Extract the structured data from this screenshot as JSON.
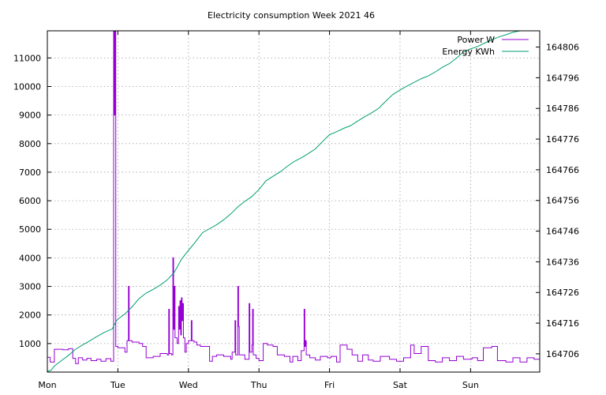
{
  "chart_data": {
    "type": "line",
    "title": "Electricity consumption Week 2021 46",
    "x_unit": "days",
    "x_ticks": [
      {
        "x": 0,
        "label": "Mon"
      },
      {
        "x": 1,
        "label": "Tue"
      },
      {
        "x": 2,
        "label": "Wed"
      },
      {
        "x": 3,
        "label": "Thu"
      },
      {
        "x": 4,
        "label": "Fri"
      },
      {
        "x": 5,
        "label": "Sat"
      },
      {
        "x": 6,
        "label": "Sun"
      }
    ],
    "xlim": [
      0,
      6.98
    ],
    "y_left": {
      "ylim": [
        0,
        11950
      ],
      "ticks": [
        1000,
        2000,
        3000,
        4000,
        5000,
        6000,
        7000,
        8000,
        9000,
        10000,
        11000
      ]
    },
    "y_right": {
      "ylim": [
        164700.05,
        164811.3
      ],
      "ticks": [
        164706,
        164716,
        164726,
        164736,
        164746,
        164756,
        164766,
        164776,
        164786,
        164796,
        164806
      ]
    },
    "grid": true,
    "legend_position": "top-right",
    "series": [
      {
        "name": "Power W",
        "axis": "left",
        "color": "#9400d3",
        "step": true,
        "points": [
          [
            0,
            520
          ],
          [
            0.04,
            350
          ],
          [
            0.1,
            800
          ],
          [
            0.22,
            780
          ],
          [
            0.3,
            820
          ],
          [
            0.36,
            480
          ],
          [
            0.4,
            300
          ],
          [
            0.44,
            500
          ],
          [
            0.5,
            420
          ],
          [
            0.56,
            480
          ],
          [
            0.62,
            400
          ],
          [
            0.7,
            450
          ],
          [
            0.76,
            380
          ],
          [
            0.83,
            470
          ],
          [
            0.9,
            380
          ],
          [
            0.94,
            12000
          ],
          [
            0.95,
            9000
          ],
          [
            0.96,
            12000
          ],
          [
            0.97,
            900
          ],
          [
            1.0,
            850
          ],
          [
            1.1,
            700
          ],
          [
            1.13,
            1100
          ],
          [
            1.15,
            3000
          ],
          [
            1.16,
            1100
          ],
          [
            1.2,
            1050
          ],
          [
            1.3,
            1000
          ],
          [
            1.35,
            900
          ],
          [
            1.4,
            500
          ],
          [
            1.5,
            550
          ],
          [
            1.6,
            650
          ],
          [
            1.7,
            600
          ],
          [
            1.72,
            2200
          ],
          [
            1.73,
            650
          ],
          [
            1.76,
            600
          ],
          [
            1.78,
            4000
          ],
          [
            1.79,
            1500
          ],
          [
            1.8,
            3000
          ],
          [
            1.81,
            1200
          ],
          [
            1.84,
            1000
          ],
          [
            1.86,
            2300
          ],
          [
            1.87,
            1500
          ],
          [
            1.88,
            2500
          ],
          [
            1.89,
            1300
          ],
          [
            1.9,
            2600
          ],
          [
            1.91,
            1800
          ],
          [
            1.92,
            2400
          ],
          [
            1.93,
            1200
          ],
          [
            1.95,
            700
          ],
          [
            1.97,
            1000
          ],
          [
            2.0,
            1100
          ],
          [
            2.04,
            1800
          ],
          [
            2.05,
            1100
          ],
          [
            2.08,
            1050
          ],
          [
            2.12,
            950
          ],
          [
            2.17,
            900
          ],
          [
            2.3,
            380
          ],
          [
            2.34,
            550
          ],
          [
            2.4,
            600
          ],
          [
            2.5,
            550
          ],
          [
            2.6,
            450
          ],
          [
            2.62,
            700
          ],
          [
            2.66,
            1800
          ],
          [
            2.67,
            600
          ],
          [
            2.7,
            3000
          ],
          [
            2.71,
            1600
          ],
          [
            2.72,
            600
          ],
          [
            2.8,
            450
          ],
          [
            2.86,
            2400
          ],
          [
            2.87,
            700
          ],
          [
            2.9,
            950
          ],
          [
            2.91,
            2200
          ],
          [
            2.92,
            600
          ],
          [
            2.96,
            480
          ],
          [
            3.0,
            400
          ],
          [
            3.06,
            1000
          ],
          [
            3.12,
            950
          ],
          [
            3.2,
            900
          ],
          [
            3.26,
            600
          ],
          [
            3.36,
            550
          ],
          [
            3.44,
            350
          ],
          [
            3.48,
            550
          ],
          [
            3.55,
            400
          ],
          [
            3.6,
            750
          ],
          [
            3.64,
            2200
          ],
          [
            3.65,
            900
          ],
          [
            3.66,
            1100
          ],
          [
            3.67,
            600
          ],
          [
            3.72,
            500
          ],
          [
            3.8,
            420
          ],
          [
            3.87,
            550
          ],
          [
            3.97,
            500
          ],
          [
            4.02,
            550
          ],
          [
            4.1,
            350
          ],
          [
            4.15,
            950
          ],
          [
            4.25,
            800
          ],
          [
            4.32,
            600
          ],
          [
            4.4,
            380
          ],
          [
            4.47,
            600
          ],
          [
            4.55,
            420
          ],
          [
            4.62,
            380
          ],
          [
            4.72,
            550
          ],
          [
            4.85,
            450
          ],
          [
            4.95,
            380
          ],
          [
            5.05,
            500
          ],
          [
            5.15,
            950
          ],
          [
            5.2,
            650
          ],
          [
            5.3,
            900
          ],
          [
            5.4,
            400
          ],
          [
            5.5,
            350
          ],
          [
            5.6,
            500
          ],
          [
            5.7,
            400
          ],
          [
            5.8,
            550
          ],
          [
            5.9,
            450
          ],
          [
            6.02,
            500
          ],
          [
            6.1,
            400
          ],
          [
            6.18,
            850
          ],
          [
            6.3,
            900
          ],
          [
            6.38,
            400
          ],
          [
            6.5,
            350
          ],
          [
            6.6,
            500
          ],
          [
            6.7,
            350
          ],
          [
            6.8,
            500
          ],
          [
            6.9,
            450
          ],
          [
            6.98,
            450
          ]
        ]
      },
      {
        "name": "Energy KWh",
        "axis": "right",
        "color": "#009e73",
        "step": false,
        "points": [
          [
            0.0,
            164700.3
          ],
          [
            0.05,
            164700.6
          ],
          [
            0.1,
            164702.0
          ],
          [
            0.2,
            164703.8
          ],
          [
            0.3,
            164705.5
          ],
          [
            0.4,
            164707.5
          ],
          [
            0.5,
            164708.9
          ],
          [
            0.6,
            164710.2
          ],
          [
            0.7,
            164711.6
          ],
          [
            0.8,
            164712.9
          ],
          [
            0.92,
            164714.1
          ],
          [
            0.97,
            164716.4
          ],
          [
            1.0,
            164717.3
          ],
          [
            1.1,
            164719.0
          ],
          [
            1.2,
            164721.3
          ],
          [
            1.3,
            164724.0
          ],
          [
            1.4,
            164725.8
          ],
          [
            1.5,
            164727.0
          ],
          [
            1.6,
            164728.4
          ],
          [
            1.7,
            164730.1
          ],
          [
            1.8,
            164732.6
          ],
          [
            1.9,
            164736.8
          ],
          [
            2.0,
            164739.7
          ],
          [
            2.1,
            164742.5
          ],
          [
            2.2,
            164745.5
          ],
          [
            2.3,
            164746.8
          ],
          [
            2.4,
            164748.1
          ],
          [
            2.5,
            164749.7
          ],
          [
            2.6,
            164751.6
          ],
          [
            2.7,
            164753.9
          ],
          [
            2.8,
            164755.7
          ],
          [
            2.9,
            164757.3
          ],
          [
            3.0,
            164759.6
          ],
          [
            3.1,
            164762.4
          ],
          [
            3.2,
            164763.9
          ],
          [
            3.3,
            164765.3
          ],
          [
            3.4,
            164767.1
          ],
          [
            3.5,
            164768.7
          ],
          [
            3.6,
            164769.9
          ],
          [
            3.7,
            164771.3
          ],
          [
            3.8,
            164772.8
          ],
          [
            3.9,
            164775.2
          ],
          [
            4.0,
            164777.4
          ],
          [
            4.1,
            164778.4
          ],
          [
            4.2,
            164779.5
          ],
          [
            4.3,
            164780.4
          ],
          [
            4.4,
            164781.9
          ],
          [
            4.5,
            164783.3
          ],
          [
            4.6,
            164784.6
          ],
          [
            4.7,
            164786.1
          ],
          [
            4.8,
            164788.4
          ],
          [
            4.9,
            164790.6
          ],
          [
            5.0,
            164792.0
          ],
          [
            5.1,
            164793.3
          ],
          [
            5.2,
            164794.5
          ],
          [
            5.3,
            164795.7
          ],
          [
            5.4,
            164796.6
          ],
          [
            5.5,
            164797.9
          ],
          [
            5.6,
            164799.4
          ],
          [
            5.7,
            164800.6
          ],
          [
            5.8,
            164802.4
          ],
          [
            5.9,
            164804.4
          ],
          [
            6.0,
            164805.4
          ],
          [
            6.1,
            164806.2
          ],
          [
            6.2,
            164807.3
          ],
          [
            6.3,
            164808.4
          ],
          [
            6.4,
            164809.3
          ],
          [
            6.5,
            164810.0
          ],
          [
            6.6,
            164810.8
          ],
          [
            6.7,
            164811.4
          ],
          [
            6.8,
            164812.0
          ],
          [
            6.98,
            164812.7
          ]
        ]
      }
    ]
  }
}
